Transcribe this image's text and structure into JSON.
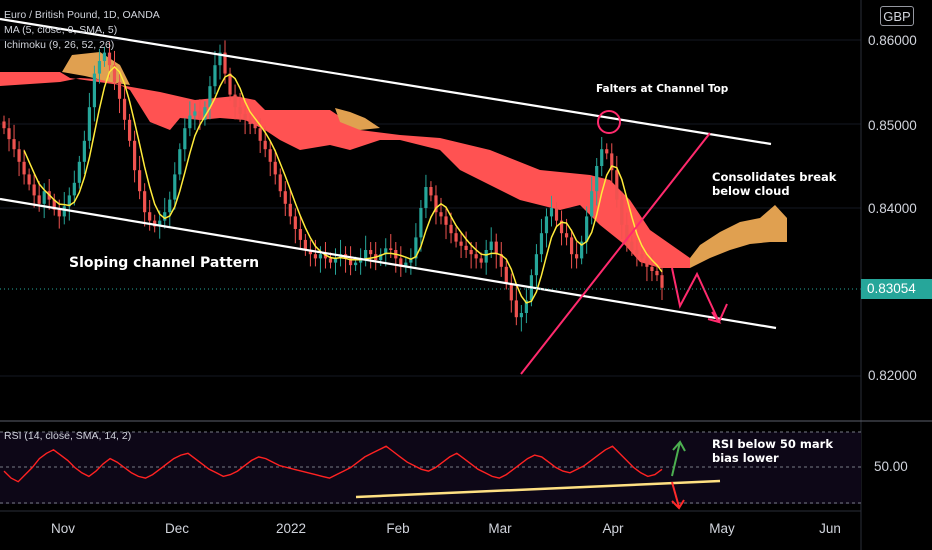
{
  "legend": {
    "symbol": "Euro / British Pound, 1D, OANDA",
    "ma": "MA (5, close, 0, SMA, 5)",
    "ichimoku": "Ichimoku (9, 26, 52, 26)"
  },
  "currency": "GBP",
  "last_price": "0.83054",
  "rsi_label": "RSI (14, close, SMA, 14, 2)",
  "rsi_axis_label": "50.00",
  "annotations": {
    "channel": "Sloping channel Pattern",
    "falters": "Falters at Channel Top",
    "consolidates_1": "Consolidates break",
    "consolidates_2": "below cloud",
    "rsi_1": "RSI below 50 mark",
    "rsi_2": "bias lower"
  },
  "colors": {
    "bull": "#26a69a",
    "bear": "#ef5350",
    "cloud_bear": "#ff5252",
    "cloud_bull": "#e0a050",
    "ma": "#ffeb3b",
    "channel": "#ffffff",
    "trend": "#ff2a6d",
    "rsi": "#ff2222",
    "rsi_trend": "#ffe082",
    "arrow_up": "#4caf50"
  },
  "chart_data": {
    "type": "candlestick",
    "y_axis_ticks": [
      0.86,
      0.85,
      0.84,
      0.83,
      0.82
    ],
    "y_axis_labels": [
      "0.86000",
      "0.85000",
      "0.84000",
      "0.83054",
      "0.82000"
    ],
    "ylim": [
      0.817,
      0.863
    ],
    "x_axis_labels": [
      "Nov",
      "Dec",
      "2022",
      "Feb",
      "Mar",
      "Apr",
      "May",
      "Jun"
    ],
    "x_axis_dates": [
      "2021-11-01",
      "2021-12-01",
      "2022-01-01",
      "2022-02-01",
      "2022-03-01",
      "2022-04-01",
      "2022-05-01",
      "2022-06-01"
    ],
    "last_price": 0.83054,
    "closes": [
      0.8495,
      0.8482,
      0.847,
      0.8455,
      0.844,
      0.8428,
      0.8415,
      0.8405,
      0.842,
      0.841,
      0.8398,
      0.839,
      0.8402,
      0.8415,
      0.843,
      0.8455,
      0.848,
      0.852,
      0.856,
      0.8575,
      0.8585,
      0.857,
      0.855,
      0.853,
      0.8505,
      0.848,
      0.8445,
      0.842,
      0.8395,
      0.8385,
      0.8378,
      0.8385,
      0.8395,
      0.841,
      0.844,
      0.847,
      0.8495,
      0.851,
      0.8515,
      0.8505,
      0.852,
      0.8545,
      0.857,
      0.8585,
      0.856,
      0.8535,
      0.852,
      0.8512,
      0.8505,
      0.85,
      0.8495,
      0.848,
      0.847,
      0.8455,
      0.844,
      0.842,
      0.8405,
      0.839,
      0.8375,
      0.8362,
      0.835,
      0.8345,
      0.834,
      0.8345,
      0.834,
      0.8335,
      0.834,
      0.8345,
      0.834,
      0.8332,
      0.8335,
      0.834,
      0.835,
      0.8345,
      0.8338,
      0.8345,
      0.8352,
      0.835,
      0.834,
      0.833,
      0.8335,
      0.834,
      0.8365,
      0.84,
      0.8425,
      0.8415,
      0.8395,
      0.839,
      0.838,
      0.837,
      0.836,
      0.8355,
      0.835,
      0.8345,
      0.834,
      0.8335,
      0.835,
      0.836,
      0.8345,
      0.833,
      0.831,
      0.829,
      0.827,
      0.8275,
      0.829,
      0.832,
      0.8345,
      0.837,
      0.839,
      0.84,
      0.8385,
      0.837,
      0.8365,
      0.8345,
      0.834,
      0.836,
      0.839,
      0.842,
      0.845,
      0.847,
      0.8465,
      0.8445,
      0.841,
      0.838,
      0.836,
      0.835,
      0.8345,
      0.834,
      0.833,
      0.8325,
      0.832,
      0.8305
    ],
    "ichimoku_cloud": "shaded span between leading span A and B, bearish red, bullish orange",
    "channel": "descending parallel channel",
    "rsi": {
      "period": 14,
      "midline": 50,
      "values": [
        48,
        44,
        42,
        46,
        50,
        55,
        58,
        60,
        57,
        54,
        50,
        47,
        45,
        48,
        52,
        55,
        53,
        50,
        47,
        45,
        44,
        46,
        49,
        52,
        55,
        57,
        58,
        55,
        52,
        49,
        47,
        45,
        46,
        48,
        51,
        54,
        56,
        55,
        53,
        51,
        50,
        49,
        48,
        47,
        46,
        45,
        44,
        46,
        48,
        50,
        53,
        56,
        58,
        60,
        62,
        59,
        56,
        53,
        51,
        49,
        48,
        50,
        53,
        56,
        58,
        55,
        52,
        49,
        47,
        45,
        44,
        46,
        49,
        52,
        55,
        57,
        56,
        53,
        50,
        48,
        47,
        49,
        51,
        54,
        57,
        60,
        62,
        58,
        54,
        50,
        47,
        45,
        46,
        49
      ]
    }
  }
}
